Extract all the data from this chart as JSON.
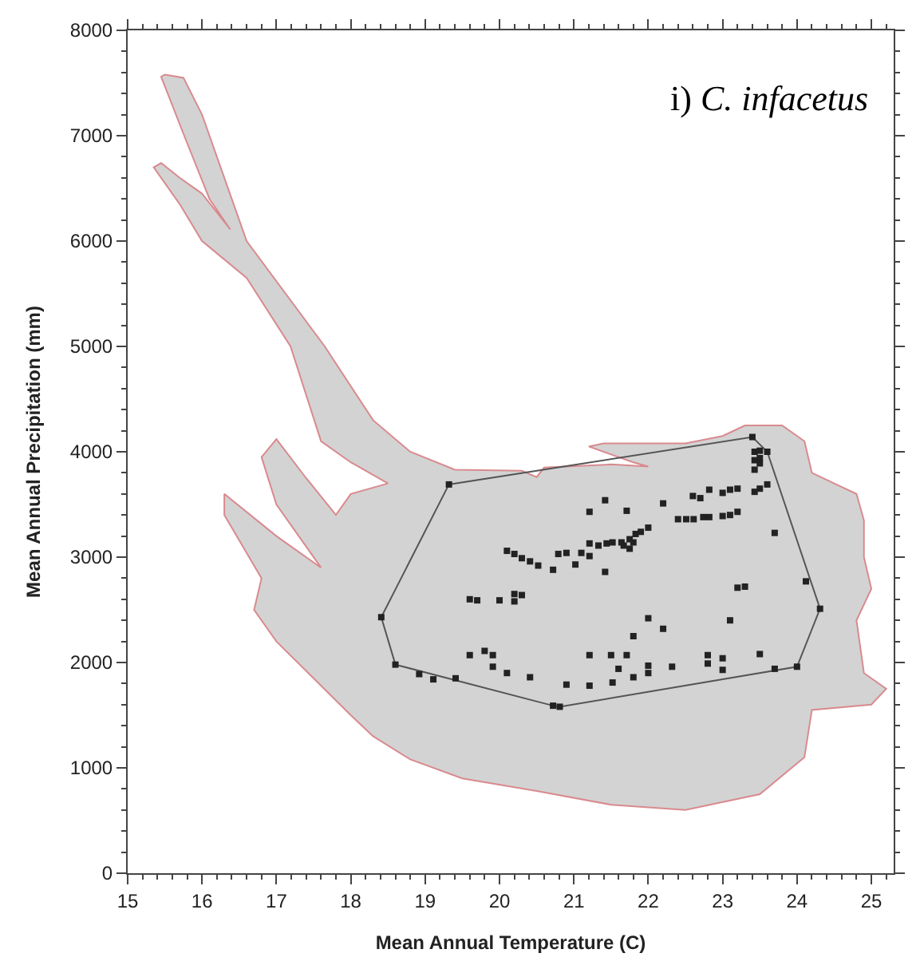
{
  "chart_data": {
    "type": "scatter",
    "annotations": [
      "i) C. infacetus"
    ],
    "xlabel": "Mean Annual Temperature (C)",
    "ylabel": "Mean Annual Precipitation (mm)",
    "xlim": [
      15,
      25.3
    ],
    "ylim": [
      0,
      8000
    ],
    "xticks": [
      15,
      16,
      17,
      18,
      19,
      20,
      21,
      22,
      23,
      24,
      25,
      {
        "value": 15.2,
        "label": null
      },
      {
        "value": 15.4,
        "label": null
      },
      {
        "value": 15.6,
        "label": null
      },
      {
        "value": 15.8,
        "label": null
      },
      {
        "value": 16.2,
        "label": null
      },
      {
        "value": 16.4,
        "label": null
      },
      {
        "value": 16.6,
        "label": null
      },
      {
        "value": 16.8,
        "label": null
      },
      {
        "value": 17.2,
        "label": null
      },
      {
        "value": 17.4,
        "label": null
      },
      {
        "value": 17.6,
        "label": null
      },
      {
        "value": 17.8,
        "label": null
      },
      {
        "value": 18.2,
        "label": null
      },
      {
        "value": 18.4,
        "label": null
      },
      {
        "value": 18.6,
        "label": null
      },
      {
        "value": 18.8,
        "label": null
      },
      {
        "value": 19.2,
        "label": null
      },
      {
        "value": 19.4,
        "label": null
      },
      {
        "value": 19.6,
        "label": null
      },
      {
        "value": 19.8,
        "label": null
      },
      {
        "value": 20.2,
        "label": null
      },
      {
        "value": 20.4,
        "label": null
      },
      {
        "value": 20.6,
        "label": null
      },
      {
        "value": 20.8,
        "label": null
      },
      {
        "value": 21.2,
        "label": null
      },
      {
        "value": 21.4,
        "label": null
      },
      {
        "value": 21.6,
        "label": null
      },
      {
        "value": 21.8,
        "label": null
      },
      {
        "value": 22.2,
        "label": null
      },
      {
        "value": 22.4,
        "label": null
      },
      {
        "value": 22.6,
        "label": null
      },
      {
        "value": 22.8,
        "label": null
      },
      {
        "value": 23.2,
        "label": null
      },
      {
        "value": 23.4,
        "label": null
      },
      {
        "value": 23.6,
        "label": null
      },
      {
        "value": 23.8,
        "label": null
      },
      {
        "value": 24.2,
        "label": null
      },
      {
        "value": 24.4,
        "label": null
      },
      {
        "value": 24.6,
        "label": null
      },
      {
        "value": 24.8,
        "label": null
      },
      {
        "value": 25.2,
        "label": null
      }
    ],
    "yticks": [
      0,
      1000,
      2000,
      3000,
      4000,
      5000,
      6000,
      7000,
      8000,
      {
        "value": 200,
        "label": null
      },
      {
        "value": 400,
        "label": null
      },
      {
        "value": 600,
        "label": null
      },
      {
        "value": 800,
        "label": null
      },
      {
        "value": 1200,
        "label": null
      },
      {
        "value": 1400,
        "label": null
      },
      {
        "value": 1600,
        "label": null
      },
      {
        "value": 1800,
        "label": null
      },
      {
        "value": 2200,
        "label": null
      },
      {
        "value": 2400,
        "label": null
      },
      {
        "value": 2600,
        "label": null
      },
      {
        "value": 2800,
        "label": null
      },
      {
        "value": 3200,
        "label": null
      },
      {
        "value": 3400,
        "label": null
      },
      {
        "value": 3600,
        "label": null
      },
      {
        "value": 3800,
        "label": null
      },
      {
        "value": 4200,
        "label": null
      },
      {
        "value": 4400,
        "label": null
      },
      {
        "value": 4600,
        "label": null
      },
      {
        "value": 4800,
        "label": null
      },
      {
        "value": 5200,
        "label": null
      },
      {
        "value": 5400,
        "label": null
      },
      {
        "value": 5600,
        "label": null
      },
      {
        "value": 5800,
        "label": null
      },
      {
        "value": 6200,
        "label": null
      },
      {
        "value": 6400,
        "label": null
      },
      {
        "value": 6600,
        "label": null
      },
      {
        "value": 6800,
        "label": null
      },
      {
        "value": 7200,
        "label": null
      },
      {
        "value": 7400,
        "label": null
      },
      {
        "value": 7600,
        "label": null
      },
      {
        "value": 7800,
        "label": null
      }
    ],
    "marker": "square",
    "series": [
      {
        "type": "area",
        "color": "#d3d3d3",
        "marker": "none",
        "x": [
          15.5,
          15.75,
          16.0,
          16.6,
          17.65,
          18.3,
          18.8,
          19.4,
          20.3,
          20.5,
          20.6,
          21.5,
          22.0,
          21.8,
          21.2,
          21.4,
          22.5,
          23.0,
          23.3,
          23.8,
          24.1,
          24.2,
          24.5,
          24.8,
          24.9,
          24.9,
          25.0,
          24.8,
          24.9,
          25.2,
          25.0,
          24.2,
          24.1,
          23.5,
          22.5,
          21.5,
          20.5,
          19.5,
          18.8,
          18.3,
          18.0,
          17.5,
          17.0,
          16.7,
          16.8,
          16.3,
          16.3,
          17.0,
          17.6,
          17.0,
          16.8,
          17.0,
          17.4,
          17.8,
          18.0,
          18.5,
          18.0,
          17.6,
          17.19,
          16.6,
          16.0,
          15.7,
          15.35,
          15.45,
          15.7,
          16.0,
          16.38,
          16.1,
          15.76,
          15.45,
          15.5
        ],
        "values": [
          7580,
          7550,
          7200,
          6000,
          5000,
          4300,
          4000,
          3830,
          3820,
          3760,
          3850,
          3880,
          3860,
          3900,
          4050,
          4080,
          4080,
          4150,
          4250,
          4250,
          4100,
          3800,
          3700,
          3600,
          3350,
          3000,
          2700,
          2400,
          1900,
          1750,
          1600,
          1550,
          1100,
          750,
          600,
          650,
          780,
          900,
          1080,
          1300,
          1500,
          1850,
          2200,
          2500,
          2800,
          3400,
          3600,
          3200,
          2900,
          3500,
          3950,
          4120,
          3750,
          3400,
          3600,
          3700,
          3900,
          4100,
          5000,
          5650,
          6000,
          6350,
          6700,
          6740,
          6600,
          6450,
          6110,
          6400,
          7000,
          7560,
          7580
        ]
      },
      {
        "type": "line",
        "color": "#555555",
        "marker": "none",
        "x": [
          18.41,
          19.32,
          23.4,
          23.6,
          24.31
        ],
        "values": [
          2430,
          3690,
          4140,
          4000,
          2510
        ]
      },
      {
        "type": "line",
        "color": "#555555",
        "marker": "none",
        "x": [
          18.41,
          18.6,
          20.72,
          20.81,
          24.0,
          24.31
        ],
        "values": [
          2430,
          1980,
          1590,
          1580,
          1960,
          2510
        ]
      },
      {
        "color": "#222222",
        "x": [
          23.4,
          23.43,
          23.5,
          23.6,
          23.43,
          23.5,
          23.43,
          23.5,
          23.43,
          23.5,
          23.6,
          22.6,
          22.7,
          22.82,
          23.0,
          23.1,
          23.2,
          22.2,
          21.42,
          21.71,
          21.21,
          22.4,
          22.51,
          22.61,
          22.74,
          22.82,
          23.0,
          23.1,
          23.2,
          23.7,
          22.0,
          21.9,
          21.83,
          21.75,
          21.67,
          21.75,
          21.8,
          21.64,
          21.52,
          21.44,
          21.33,
          21.21,
          21.21,
          21.1,
          21.02,
          20.9,
          20.79,
          20.72,
          20.52,
          20.41,
          20.3,
          20.2,
          20.1,
          21.42,
          24.12,
          23.2,
          23.3,
          19.6,
          19.7,
          20.0,
          20.2,
          20.2,
          20.3,
          24.31,
          18.41,
          23.1,
          22.0,
          22.2,
          21.8,
          19.6,
          19.8,
          19.91,
          19.91,
          20.1,
          20.41,
          20.9,
          21.21,
          21.21,
          21.5,
          21.6,
          21.71,
          21.52,
          21.8,
          22.0,
          22.0,
          22.32,
          22.8,
          22.8,
          23.0,
          23.0,
          23.5,
          23.7,
          24.0,
          18.6,
          18.92,
          19.11,
          19.41,
          20.72,
          20.81,
          19.32
        ],
        "values": [
          4140,
          4000,
          4010,
          4000,
          3920,
          3940,
          3830,
          3890,
          3620,
          3650,
          3690,
          3580,
          3560,
          3640,
          3610,
          3640,
          3650,
          3510,
          3540,
          3440,
          3430,
          3360,
          3360,
          3360,
          3380,
          3380,
          3390,
          3400,
          3430,
          3230,
          3280,
          3240,
          3220,
          3170,
          3110,
          3080,
          3140,
          3140,
          3140,
          3130,
          3110,
          3130,
          3010,
          3040,
          2930,
          3040,
          3030,
          2880,
          2920,
          2960,
          2990,
          3030,
          3060,
          2860,
          2770,
          2710,
          2720,
          2600,
          2590,
          2590,
          2650,
          2580,
          2640,
          2510,
          2430,
          2400,
          2420,
          2320,
          2250,
          2070,
          2110,
          2070,
          1960,
          1900,
          1860,
          1790,
          2070,
          1780,
          2070,
          1940,
          2070,
          1810,
          1860,
          1970,
          1900,
          1960,
          2070,
          1990,
          2040,
          1930,
          2080,
          1940,
          1960,
          1980,
          1890,
          1840,
          1850,
          1590,
          1580,
          3690
        ]
      }
    ]
  }
}
